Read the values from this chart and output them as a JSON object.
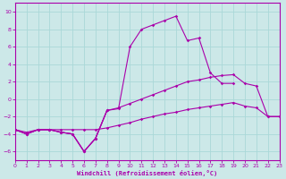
{
  "xlabel": "Windchill (Refroidissement éolien,°C)",
  "background_color": "#cce8e8",
  "grid_color": "#aad8d8",
  "line_color": "#aa00aa",
  "xlim": [
    0,
    23
  ],
  "ylim": [
    -7,
    11
  ],
  "xticks": [
    0,
    1,
    2,
    3,
    4,
    5,
    6,
    7,
    8,
    9,
    10,
    11,
    12,
    13,
    14,
    15,
    16,
    17,
    18,
    19,
    20,
    21,
    22,
    23
  ],
  "yticks": [
    -6,
    -4,
    -2,
    0,
    2,
    4,
    6,
    8,
    10
  ],
  "curves": [
    {
      "x": [
        0,
        1,
        2,
        3,
        4,
        5,
        6,
        7,
        8,
        9,
        10,
        11,
        12,
        13,
        14,
        15,
        16,
        17,
        18,
        19
      ],
      "y": [
        -3.5,
        -4,
        -3.5,
        -3.5,
        -3.8,
        -4,
        -6,
        -4.5,
        -1.3,
        -1.1,
        6,
        8,
        8.5,
        9,
        9.5,
        6.7,
        7,
        3,
        1.8,
        1.8
      ]
    },
    {
      "x": [
        0,
        1,
        2,
        3,
        4,
        5,
        6,
        7,
        8,
        9,
        10,
        11,
        12,
        13,
        14,
        15,
        16,
        17,
        18,
        19,
        20,
        21,
        22,
        23
      ],
      "y": [
        -3.5,
        -4,
        -3.5,
        -3.5,
        -3.8,
        -4,
        -6,
        -4.5,
        -1.3,
        -1.0,
        -0.5,
        0,
        0.5,
        1.0,
        1.5,
        2.0,
        2.2,
        2.5,
        2.7,
        2.8,
        1.8,
        1.5,
        -2,
        -2
      ]
    },
    {
      "x": [
        0,
        1,
        2,
        3,
        4,
        5,
        6,
        7,
        8,
        9,
        10,
        11,
        12,
        13,
        14,
        15,
        16,
        17,
        18,
        19,
        20,
        21,
        22,
        23
      ],
      "y": [
        -3.5,
        -3.8,
        -3.5,
        -3.5,
        -3.5,
        -3.5,
        -3.5,
        -3.5,
        -3.3,
        -3.0,
        -2.7,
        -2.3,
        -2.0,
        -1.7,
        -1.5,
        -1.2,
        -1.0,
        -0.8,
        -0.6,
        -0.4,
        -0.8,
        -1.0,
        -2,
        -2
      ]
    },
    {
      "x": [
        0,
        1,
        2,
        3,
        4,
        5,
        6,
        7,
        8
      ],
      "y": [
        -3.5,
        -4,
        -3.5,
        -3.5,
        -3.8,
        -4,
        -6,
        -4.5,
        -1.3
      ]
    }
  ]
}
